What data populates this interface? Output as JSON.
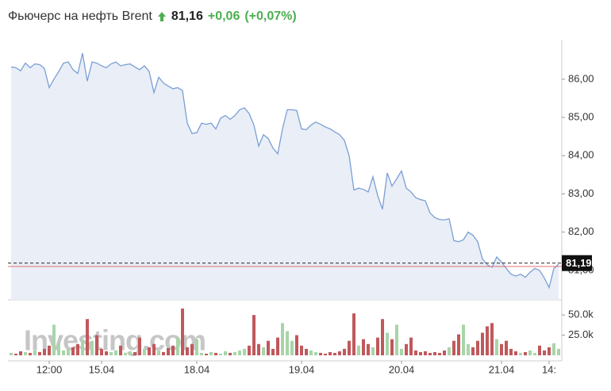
{
  "chart_data": {
    "type": "area",
    "title": "Фьючерс на нефть Brent",
    "price": "81,16",
    "change": "+0,06",
    "change_pct": "(+0,07%)",
    "watermark": "Investing.com",
    "categories": [
      null,
      null,
      null,
      null,
      null,
      null,
      null,
      null,
      "12:00",
      null,
      null,
      null,
      null,
      null,
      null,
      null,
      null,
      null,
      null,
      "15.04",
      null,
      null,
      null,
      null,
      null,
      null,
      null,
      null,
      null,
      null,
      null,
      null,
      null,
      null,
      null,
      null,
      null,
      null,
      null,
      "18.04",
      null,
      null,
      null,
      null,
      null,
      null,
      null,
      null,
      null,
      null,
      null,
      null,
      null,
      null,
      null,
      null,
      null,
      null,
      null,
      null,
      null,
      "19.04",
      null,
      null,
      null,
      null,
      null,
      null,
      null,
      null,
      null,
      null,
      null,
      null,
      null,
      null,
      null,
      null,
      null,
      null,
      null,
      null,
      "20.04",
      null,
      null,
      null,
      null,
      null,
      null,
      null,
      null,
      null,
      null,
      null,
      null,
      null,
      null,
      null,
      null,
      null,
      null,
      null,
      null,
      "21.04",
      null,
      null,
      null,
      null,
      null,
      null,
      null,
      null,
      null,
      "14:",
      null,
      null
    ],
    "series": [
      {
        "name": "Brent",
        "color": "#7a9fd4",
        "fill": "#e9eef7",
        "values": [
          86.32,
          86.3,
          86.22,
          86.42,
          86.3,
          86.4,
          86.38,
          86.28,
          85.78,
          86.0,
          86.2,
          86.42,
          86.45,
          86.25,
          86.15,
          86.68,
          85.95,
          86.45,
          86.42,
          86.35,
          86.3,
          86.4,
          86.45,
          86.35,
          86.38,
          86.4,
          86.32,
          86.25,
          86.35,
          86.2,
          85.65,
          86.05,
          85.9,
          85.82,
          85.75,
          85.78,
          85.7,
          84.85,
          84.58,
          84.6,
          84.85,
          84.82,
          84.85,
          84.7,
          84.98,
          85.05,
          84.95,
          85.05,
          85.2,
          85.25,
          85.1,
          84.8,
          84.25,
          84.55,
          84.45,
          84.2,
          84.05,
          84.7,
          85.2,
          85.2,
          85.18,
          84.7,
          84.68,
          84.8,
          84.88,
          84.82,
          84.75,
          84.7,
          84.62,
          84.55,
          84.4,
          84.0,
          83.1,
          83.15,
          83.12,
          83.05,
          83.45,
          82.95,
          82.6,
          83.55,
          83.2,
          83.4,
          83.6,
          83.15,
          83.05,
          82.9,
          82.85,
          82.82,
          82.5,
          82.38,
          82.33,
          82.32,
          82.35,
          81.78,
          81.75,
          81.8,
          82.0,
          81.92,
          81.75,
          81.3,
          81.15,
          81.08,
          81.35,
          81.22,
          81.05,
          80.9,
          80.85,
          80.9,
          80.82,
          80.95,
          81.05,
          81.0,
          80.8,
          80.55,
          81.05,
          81.16
        ]
      },
      {
        "name": "Volume",
        "axis": "y2",
        "type": "bar",
        "up_color": "#a8d5a8",
        "down_color": "#c0585c",
        "values": [
          3000,
          2000,
          5000,
          4000,
          3000,
          6000,
          4000,
          8000,
          12000,
          38000,
          15000,
          6000,
          8000,
          10000,
          14000,
          20000,
          45000,
          18000,
          25000,
          8000,
          5000,
          4000,
          6000,
          12000,
          3000,
          5000,
          4000,
          22000,
          8000,
          10000,
          14000,
          6000,
          4000,
          9000,
          12000,
          22000,
          58000,
          10000,
          14000,
          20000,
          3000,
          2000,
          4000,
          3000,
          2000,
          5000,
          3000,
          4000,
          6000,
          8000,
          12000,
          50000,
          14000,
          10000,
          18000,
          8000,
          22000,
          40000,
          30000,
          18000,
          25000,
          12000,
          8000,
          6000,
          4000,
          3000,
          2000,
          4000,
          3000,
          5000,
          8000,
          18000,
          52000,
          12000,
          20000,
          14000,
          10000,
          22000,
          45000,
          28000,
          20000,
          38000,
          8000,
          14000,
          22000,
          6000,
          4000,
          5000,
          3000,
          4000,
          3000,
          6000,
          10000,
          18000,
          26000,
          38000,
          14000,
          10000,
          18000,
          28000,
          36000,
          40000,
          20000,
          14000,
          18000,
          8000,
          5000,
          3000,
          4000,
          6000,
          3000,
          12000,
          6000,
          10000,
          15000,
          8000
        ]
      }
    ],
    "ylim": [
      80.23,
      86.93
    ],
    "yticks": [
      {
        "value": 81,
        "label": "81,00"
      },
      {
        "value": 82,
        "label": "82,00"
      },
      {
        "value": 83,
        "label": "83,00"
      },
      {
        "value": 84,
        "label": "84,00"
      },
      {
        "value": 85,
        "label": "85,00"
      },
      {
        "value": 86,
        "label": "86,00"
      }
    ],
    "y2lim": [
      0,
      62000
    ],
    "y2ticks": [
      {
        "value": 25000,
        "label": "25.0k"
      },
      {
        "value": 50000,
        "label": "50.0k"
      }
    ],
    "current": {
      "value": 81.19,
      "label": "81,19"
    },
    "prev_close": 81.1
  }
}
